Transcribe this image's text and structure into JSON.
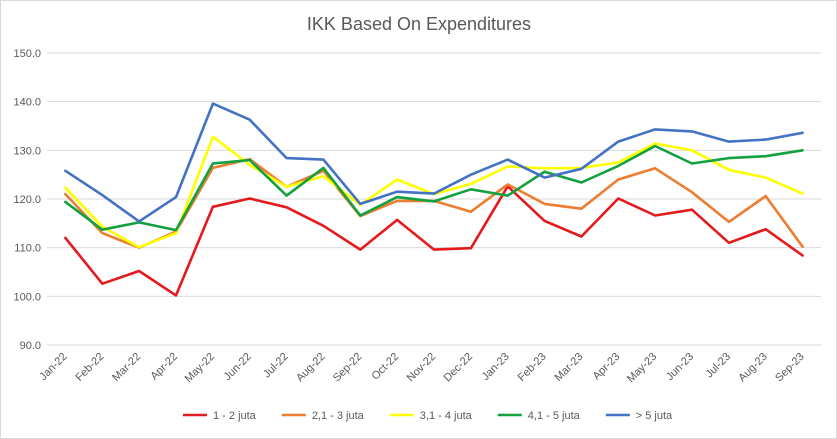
{
  "chart_data": {
    "type": "line",
    "title": "IKK Based On Expenditures",
    "xlabel": "",
    "ylabel": "",
    "ylim": [
      90,
      150
    ],
    "yticks": [
      "90.0",
      "100.0",
      "110.0",
      "120.0",
      "130.0",
      "140.0",
      "150.0"
    ],
    "grid": "horizontal",
    "legend_position": "bottom",
    "categories": [
      "Jan-22",
      "Feb-22",
      "Mar-22",
      "Apr-22",
      "May-22",
      "Jun-22",
      "Jul-22",
      "Aug-22",
      "Sep-22",
      "Oct-22",
      "Nov-22",
      "Dec-22",
      "Jan-23",
      "Feb-23",
      "Mar-23",
      "Apr-23",
      "May-23",
      "Jun-23",
      "Jul-23",
      "Aug-23",
      "Sep-23"
    ],
    "series": [
      {
        "name": "1 - 2 juta",
        "color": "#e41a1c",
        "values": [
          112.0,
          102.6,
          105.2,
          100.2,
          118.4,
          120.1,
          118.3,
          114.5,
          109.6,
          115.7,
          109.6,
          109.9,
          122.6,
          115.5,
          112.3,
          120.1,
          116.6,
          117.8,
          111.0,
          113.8,
          108.4
        ]
      },
      {
        "name": "2,1 - 3 juta",
        "color": "#ed7d31",
        "values": [
          121.0,
          113.0,
          110.0,
          113.3,
          126.4,
          128.2,
          122.5,
          125.8,
          116.5,
          119.6,
          119.6,
          117.4,
          123.0,
          119.0,
          118.0,
          124.0,
          126.3,
          121.4,
          115.3,
          120.6,
          110.2
        ]
      },
      {
        "name": "3,1 - 4 juta",
        "color": "#ffff00",
        "values": [
          122.3,
          114.3,
          110.1,
          113.0,
          132.8,
          127.0,
          122.5,
          124.7,
          118.8,
          124.0,
          121.0,
          123.1,
          126.7,
          126.3,
          126.4,
          127.5,
          131.4,
          130.0,
          126.0,
          124.4,
          121.1
        ]
      },
      {
        "name": "4,1 - 5 juta",
        "color": "#12a13f",
        "values": [
          119.4,
          113.7,
          115.2,
          113.6,
          127.3,
          128.0,
          120.7,
          126.4,
          116.6,
          120.4,
          119.5,
          122.0,
          120.7,
          125.6,
          123.4,
          126.8,
          130.9,
          127.3,
          128.4,
          128.8,
          130.0
        ]
      },
      {
        "name": "> 5 juta",
        "color": "#4472c4",
        "values": [
          125.8,
          120.8,
          115.4,
          120.4,
          139.6,
          136.3,
          128.4,
          128.1,
          119.0,
          121.5,
          121.1,
          125.0,
          128.1,
          124.4,
          126.2,
          131.8,
          134.3,
          133.9,
          131.8,
          132.2,
          133.6
        ]
      }
    ]
  }
}
